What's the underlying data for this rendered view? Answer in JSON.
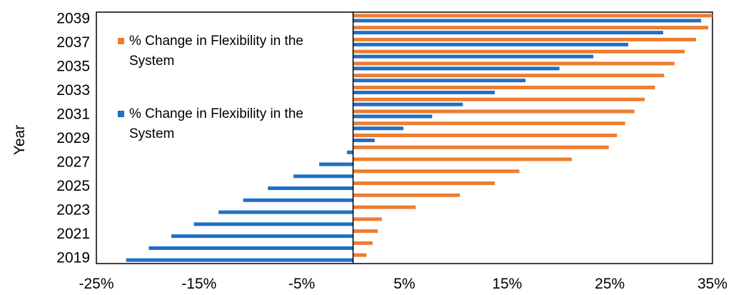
{
  "chart_data": {
    "type": "bar",
    "orientation": "horizontal",
    "ylabel": "Year",
    "xlabel": "",
    "xlim": [
      -0.25,
      0.35
    ],
    "x_ticks": [
      "-25%",
      "-15%",
      "-5%",
      "5%",
      "15%",
      "25%",
      "35%"
    ],
    "y_tick_labels": [
      "2039",
      "2037",
      "2035",
      "2033",
      "2031",
      "2029",
      "2027",
      "2025",
      "2023",
      "2021",
      "2019"
    ],
    "categories": [
      "2019",
      "2020",
      "2021",
      "2022",
      "2023",
      "2024",
      "2025",
      "2026",
      "2027",
      "2028",
      "2029",
      "2030",
      "2031",
      "2032",
      "2033",
      "2034",
      "2035",
      "2036",
      "2037",
      "2038",
      "2039"
    ],
    "series": [
      {
        "name": "% Change in Flexibility in the System",
        "color": "#ED7D31",
        "values": [
          0.013,
          0.019,
          0.024,
          0.028,
          0.061,
          0.104,
          0.138,
          0.162,
          0.213,
          0.249,
          0.257,
          0.265,
          0.274,
          0.284,
          0.294,
          0.303,
          0.313,
          0.323,
          0.334,
          0.346,
          0.35
        ]
      },
      {
        "name": "% Change in Flexibility in the System",
        "color": "#1F6FC5",
        "values": [
          -0.221,
          -0.199,
          -0.177,
          -0.155,
          -0.131,
          -0.107,
          -0.083,
          -0.058,
          -0.033,
          -0.006,
          0.021,
          0.049,
          0.077,
          0.107,
          0.138,
          0.168,
          0.201,
          0.234,
          0.268,
          0.302,
          0.339
        ]
      }
    ],
    "legend_position": "top-left",
    "grid": false
  }
}
